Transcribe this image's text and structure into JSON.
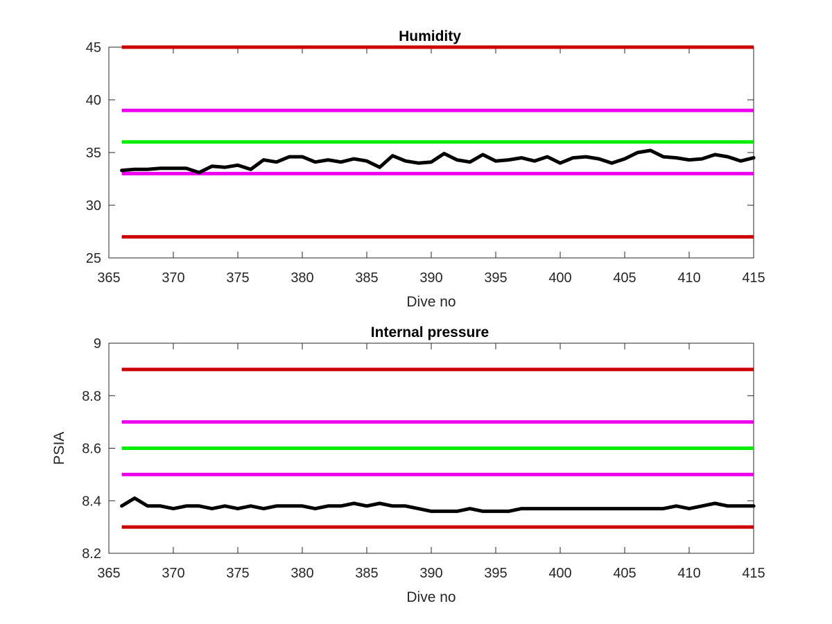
{
  "chart_data": [
    {
      "type": "line",
      "title": "Humidity",
      "xlabel": "Dive no",
      "ylabel": "",
      "xlim": [
        365,
        415
      ],
      "ylim": [
        25,
        45
      ],
      "xticks": [
        365,
        370,
        375,
        380,
        385,
        390,
        395,
        400,
        405,
        410,
        415
      ],
      "yticks": [
        25,
        30,
        35,
        40,
        45
      ],
      "thresholds": [
        {
          "value": 45,
          "color": "#cc0000"
        },
        {
          "value": 39,
          "color": "#ee00ee"
        },
        {
          "value": 36,
          "color": "#00ee00"
        },
        {
          "value": 33,
          "color": "#ee00ee"
        },
        {
          "value": 27,
          "color": "#cc0000"
        }
      ],
      "series": [
        {
          "color": "#000000",
          "x": [
            366,
            367,
            368,
            369,
            370,
            371,
            372,
            373,
            374,
            375,
            376,
            377,
            378,
            379,
            380,
            381,
            382,
            383,
            384,
            385,
            386,
            387,
            388,
            389,
            390,
            391,
            392,
            393,
            394,
            395,
            396,
            397,
            398,
            399,
            400,
            401,
            402,
            403,
            404,
            405,
            406,
            407,
            408,
            409,
            410,
            411,
            412,
            413,
            414,
            415
          ],
          "y": [
            33.3,
            33.4,
            33.4,
            33.5,
            33.5,
            33.5,
            33.1,
            33.7,
            33.6,
            33.8,
            33.4,
            34.3,
            34.1,
            34.6,
            34.6,
            34.1,
            34.3,
            34.1,
            34.4,
            34.2,
            33.6,
            34.7,
            34.2,
            34.0,
            34.1,
            34.9,
            34.3,
            34.1,
            34.8,
            34.2,
            34.3,
            34.5,
            34.2,
            34.6,
            34.0,
            34.5,
            34.6,
            34.4,
            34.0,
            34.4,
            35.0,
            35.2,
            34.6,
            34.5,
            34.3,
            34.4,
            34.8,
            34.6,
            34.2,
            34.5
          ]
        }
      ]
    },
    {
      "type": "line",
      "title": "Internal pressure",
      "xlabel": "Dive no",
      "ylabel": "PSIA",
      "xlim": [
        365,
        415
      ],
      "ylim": [
        8.2,
        9
      ],
      "xticks": [
        365,
        370,
        375,
        380,
        385,
        390,
        395,
        400,
        405,
        410,
        415
      ],
      "yticks": [
        8.2,
        8.4,
        8.6,
        8.8,
        9
      ],
      "thresholds": [
        {
          "value": 8.9,
          "color": "#cc0000"
        },
        {
          "value": 8.7,
          "color": "#ee00ee"
        },
        {
          "value": 8.6,
          "color": "#00ee00"
        },
        {
          "value": 8.5,
          "color": "#ee00ee"
        },
        {
          "value": 8.3,
          "color": "#cc0000"
        }
      ],
      "series": [
        {
          "color": "#000000",
          "x": [
            366,
            367,
            368,
            369,
            370,
            371,
            372,
            373,
            374,
            375,
            376,
            377,
            378,
            379,
            380,
            381,
            382,
            383,
            384,
            385,
            386,
            387,
            388,
            389,
            390,
            391,
            392,
            393,
            394,
            395,
            396,
            397,
            398,
            399,
            400,
            401,
            402,
            403,
            404,
            405,
            406,
            407,
            408,
            409,
            410,
            411,
            412,
            413,
            414,
            415
          ],
          "y": [
            8.38,
            8.41,
            8.38,
            8.38,
            8.37,
            8.38,
            8.38,
            8.37,
            8.38,
            8.37,
            8.38,
            8.37,
            8.38,
            8.38,
            8.38,
            8.37,
            8.38,
            8.38,
            8.39,
            8.38,
            8.39,
            8.38,
            8.38,
            8.37,
            8.36,
            8.36,
            8.36,
            8.37,
            8.36,
            8.36,
            8.36,
            8.37,
            8.37,
            8.37,
            8.37,
            8.37,
            8.37,
            8.37,
            8.37,
            8.37,
            8.37,
            8.37,
            8.37,
            8.38,
            8.37,
            8.38,
            8.39,
            8.38,
            8.38,
            8.38
          ]
        }
      ]
    }
  ]
}
